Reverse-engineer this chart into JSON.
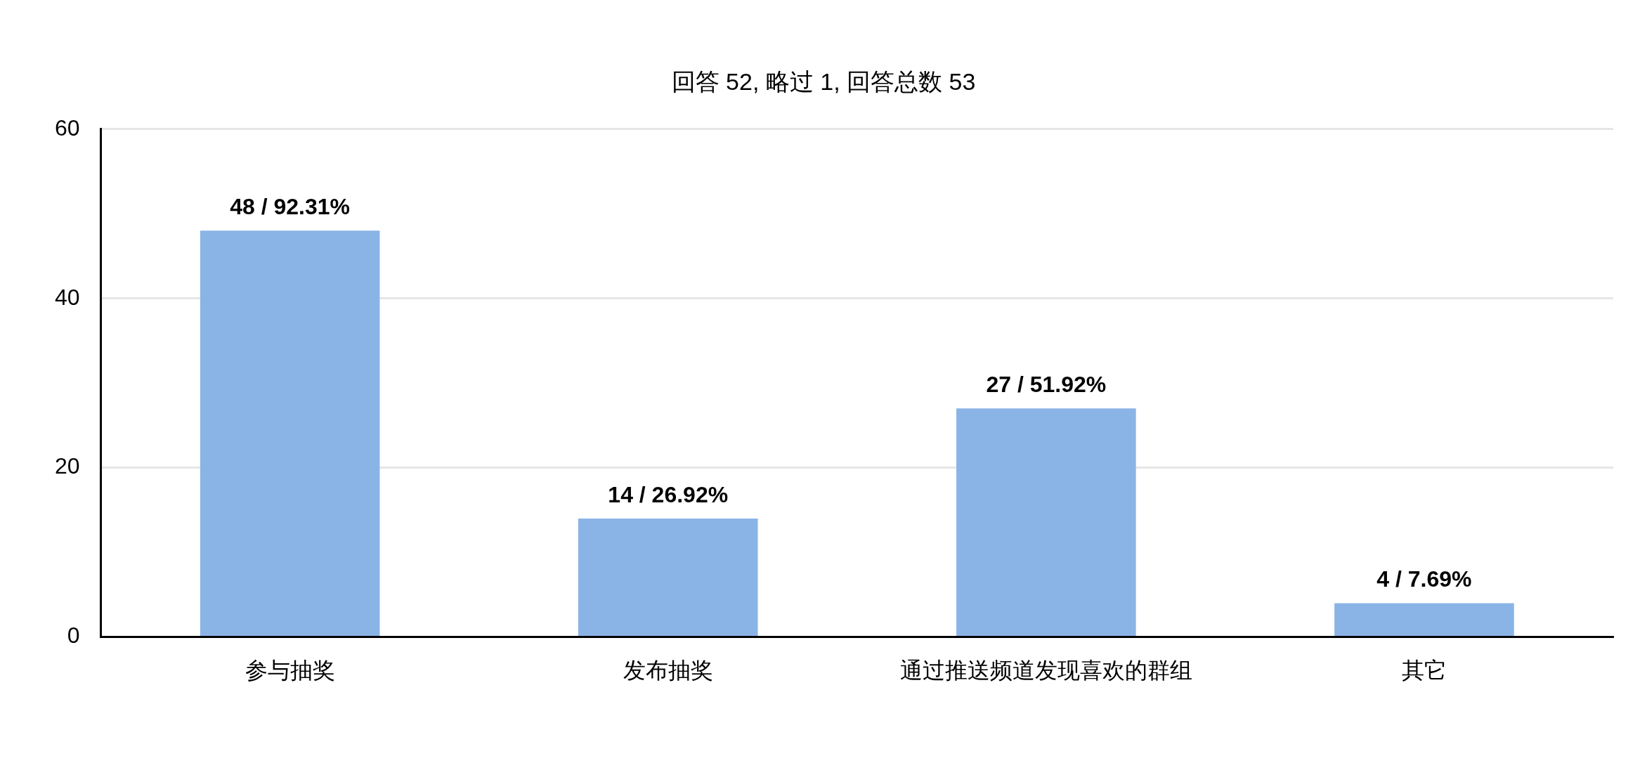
{
  "chart_data": {
    "type": "bar",
    "title": "回答 52, 略过 1, 回答总数 53",
    "categories": [
      "参与抽奖",
      "发布抽奖",
      "通过推送频道发现喜欢的群组",
      "其它"
    ],
    "values": [
      48,
      14,
      27,
      4
    ],
    "value_labels": [
      "48 / 92.31%",
      "14 / 26.92%",
      "27 / 51.92%",
      "4 / 7.69%"
    ],
    "color": "#8ab4e6",
    "ylim": [
      0,
      60
    ],
    "yticks": [
      0,
      20,
      40,
      60
    ],
    "grid": "y",
    "legend": false
  }
}
